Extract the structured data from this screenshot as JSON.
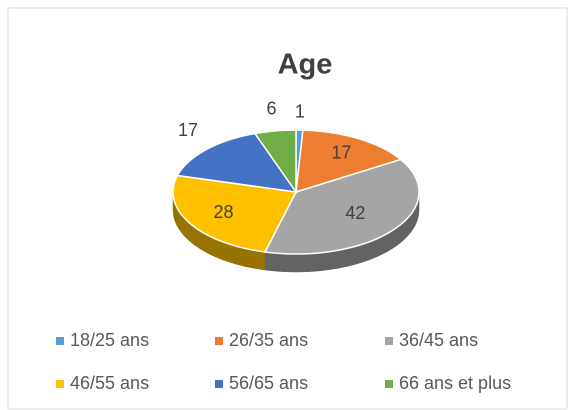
{
  "chart_data": {
    "type": "pie",
    "title": "Age",
    "categories": [
      "18/25 ans",
      "26/35 ans",
      "36/45 ans",
      "46/55 ans",
      "56/65 ans",
      "66 ans et plus"
    ],
    "values": [
      1,
      17,
      42,
      28,
      17,
      6
    ],
    "colors": [
      "#5b9bd5",
      "#ed7d31",
      "#a5a5a5",
      "#ffc000",
      "#4472c4",
      "#70ad47"
    ],
    "legend": "bottom"
  }
}
